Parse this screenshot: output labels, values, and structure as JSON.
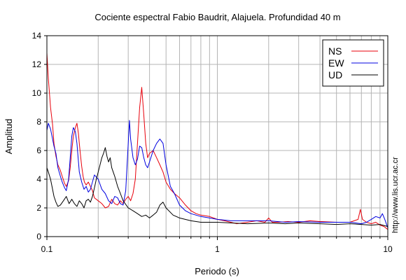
{
  "chart_data": {
    "type": "line",
    "title": "Cociente espectral Fabio Baudrit, Alajuela. Profundidad 40 m",
    "xlabel": "Periodo (s)",
    "ylabel": "Amplitud",
    "xscale": "log",
    "xlim": [
      0.1,
      10
    ],
    "ylim": [
      0,
      14
    ],
    "xticks": [
      {
        "value": 0.1,
        "label": "0.1"
      },
      {
        "value": 1,
        "label": "1"
      },
      {
        "value": 10,
        "label": "10"
      }
    ],
    "yticks": [
      0,
      2,
      4,
      6,
      8,
      10,
      12,
      14
    ],
    "grid": true,
    "legend_position": "top-right",
    "watermark": "http://www.lis.ucr.ac.cr",
    "series": [
      {
        "name": "NS",
        "color": "#e8000b",
        "x": [
          0.1,
          0.102,
          0.105,
          0.108,
          0.11,
          0.113,
          0.116,
          0.12,
          0.123,
          0.127,
          0.13,
          0.134,
          0.137,
          0.14,
          0.143,
          0.147,
          0.15,
          0.153,
          0.155,
          0.157,
          0.16,
          0.163,
          0.166,
          0.17,
          0.175,
          0.18,
          0.185,
          0.19,
          0.2,
          0.21,
          0.22,
          0.23,
          0.24,
          0.25,
          0.26,
          0.27,
          0.28,
          0.29,
          0.3,
          0.31,
          0.32,
          0.33,
          0.34,
          0.35,
          0.36,
          0.37,
          0.38,
          0.39,
          0.4,
          0.42,
          0.44,
          0.46,
          0.48,
          0.5,
          0.53,
          0.56,
          0.6,
          0.65,
          0.7,
          0.75,
          0.8,
          0.9,
          1.0,
          1.1,
          1.2,
          1.3,
          1.5,
          1.7,
          1.9,
          2.0,
          2.1,
          2.3,
          2.6,
          3.0,
          3.5,
          4.0,
          5.0,
          6.0,
          6.7,
          6.9,
          7.1,
          7.5,
          8.0,
          8.5,
          9.0,
          9.5,
          10.0
        ],
        "y": [
          12.8,
          11.0,
          9.0,
          7.8,
          6.5,
          5.6,
          5.0,
          4.6,
          4.2,
          3.7,
          3.5,
          3.9,
          4.8,
          6.0,
          7.0,
          7.6,
          7.9,
          7.2,
          6.5,
          5.8,
          4.9,
          4.2,
          3.8,
          3.6,
          3.8,
          3.5,
          3.2,
          2.7,
          2.5,
          2.3,
          2.0,
          2.1,
          2.6,
          2.3,
          2.2,
          2.5,
          2.3,
          2.6,
          2.8,
          2.5,
          3.0,
          4.0,
          6.5,
          9.0,
          10.4,
          8.5,
          6.5,
          5.5,
          5.8,
          6.0,
          5.5,
          5.0,
          4.5,
          3.8,
          3.3,
          3.0,
          2.7,
          2.2,
          1.8,
          1.6,
          1.5,
          1.4,
          1.2,
          1.1,
          1.0,
          0.9,
          1.0,
          1.1,
          1.0,
          1.3,
          1.0,
          1.0,
          1.05,
          1.0,
          1.1,
          1.05,
          1.0,
          1.0,
          1.2,
          1.9,
          1.2,
          1.0,
          0.9,
          1.0,
          0.8,
          0.7,
          0.5
        ]
      },
      {
        "name": "EW",
        "color": "#0000e0",
        "x": [
          0.1,
          0.102,
          0.105,
          0.108,
          0.11,
          0.113,
          0.116,
          0.12,
          0.123,
          0.127,
          0.13,
          0.134,
          0.137,
          0.14,
          0.143,
          0.147,
          0.15,
          0.155,
          0.16,
          0.165,
          0.17,
          0.175,
          0.18,
          0.19,
          0.2,
          0.21,
          0.22,
          0.23,
          0.24,
          0.25,
          0.26,
          0.27,
          0.28,
          0.29,
          0.3,
          0.305,
          0.31,
          0.32,
          0.33,
          0.34,
          0.35,
          0.36,
          0.37,
          0.38,
          0.39,
          0.4,
          0.42,
          0.44,
          0.46,
          0.48,
          0.5,
          0.53,
          0.56,
          0.6,
          0.65,
          0.7,
          0.75,
          0.8,
          0.9,
          1.0,
          1.2,
          1.5,
          2.0,
          2.5,
          3.0,
          4.0,
          5.0,
          6.0,
          7.0,
          7.5,
          8.0,
          8.5,
          9.0,
          9.3,
          9.6,
          10.0
        ],
        "y": [
          7.4,
          7.9,
          7.5,
          6.8,
          6.3,
          5.8,
          4.8,
          4.2,
          3.8,
          3.4,
          3.2,
          4.0,
          5.5,
          7.0,
          7.6,
          7.3,
          6.5,
          4.5,
          3.8,
          3.3,
          3.5,
          3.1,
          3.3,
          4.3,
          4.0,
          3.3,
          3.0,
          2.5,
          2.3,
          2.8,
          2.7,
          2.3,
          2.2,
          3.2,
          6.5,
          8.1,
          6.8,
          5.5,
          5.0,
          5.4,
          6.3,
          6.2,
          5.5,
          5.0,
          4.8,
          5.2,
          6.0,
          6.5,
          6.8,
          6.5,
          5.0,
          3.5,
          3.0,
          2.2,
          1.8,
          1.6,
          1.5,
          1.4,
          1.3,
          1.2,
          1.1,
          1.1,
          1.1,
          1.0,
          1.05,
          1.0,
          1.0,
          1.0,
          0.9,
          1.0,
          1.2,
          1.4,
          1.3,
          1.6,
          1.2,
          0.6
        ]
      },
      {
        "name": "UD",
        "color": "#000000",
        "x": [
          0.1,
          0.102,
          0.105,
          0.108,
          0.11,
          0.113,
          0.116,
          0.12,
          0.125,
          0.13,
          0.135,
          0.14,
          0.145,
          0.15,
          0.155,
          0.16,
          0.165,
          0.17,
          0.175,
          0.18,
          0.185,
          0.19,
          0.195,
          0.2,
          0.205,
          0.21,
          0.215,
          0.22,
          0.225,
          0.23,
          0.235,
          0.24,
          0.25,
          0.26,
          0.27,
          0.28,
          0.3,
          0.32,
          0.34,
          0.36,
          0.38,
          0.4,
          0.42,
          0.44,
          0.46,
          0.48,
          0.5,
          0.55,
          0.6,
          0.7,
          0.8,
          0.9,
          1.0,
          1.2,
          1.5,
          2.0,
          2.5,
          3.0,
          4.0,
          5.0,
          6.0,
          7.0,
          8.0,
          9.0,
          10.0
        ],
        "y": [
          4.8,
          4.5,
          4.0,
          3.3,
          2.8,
          2.4,
          2.1,
          2.2,
          2.5,
          2.8,
          2.3,
          2.6,
          2.3,
          2.1,
          2.5,
          2.3,
          2.0,
          2.5,
          2.6,
          2.4,
          2.8,
          3.4,
          4.0,
          4.5,
          5.0,
          5.5,
          5.8,
          6.2,
          5.6,
          5.2,
          5.5,
          4.8,
          4.2,
          3.5,
          3.0,
          2.5,
          2.0,
          1.8,
          1.6,
          1.4,
          1.5,
          1.3,
          1.5,
          1.7,
          2.2,
          2.4,
          2.0,
          1.5,
          1.3,
          1.1,
          1.0,
          1.0,
          1.0,
          0.95,
          0.9,
          0.95,
          0.9,
          0.95,
          0.9,
          0.85,
          0.9,
          0.85,
          0.8,
          0.85,
          0.7
        ]
      }
    ]
  }
}
